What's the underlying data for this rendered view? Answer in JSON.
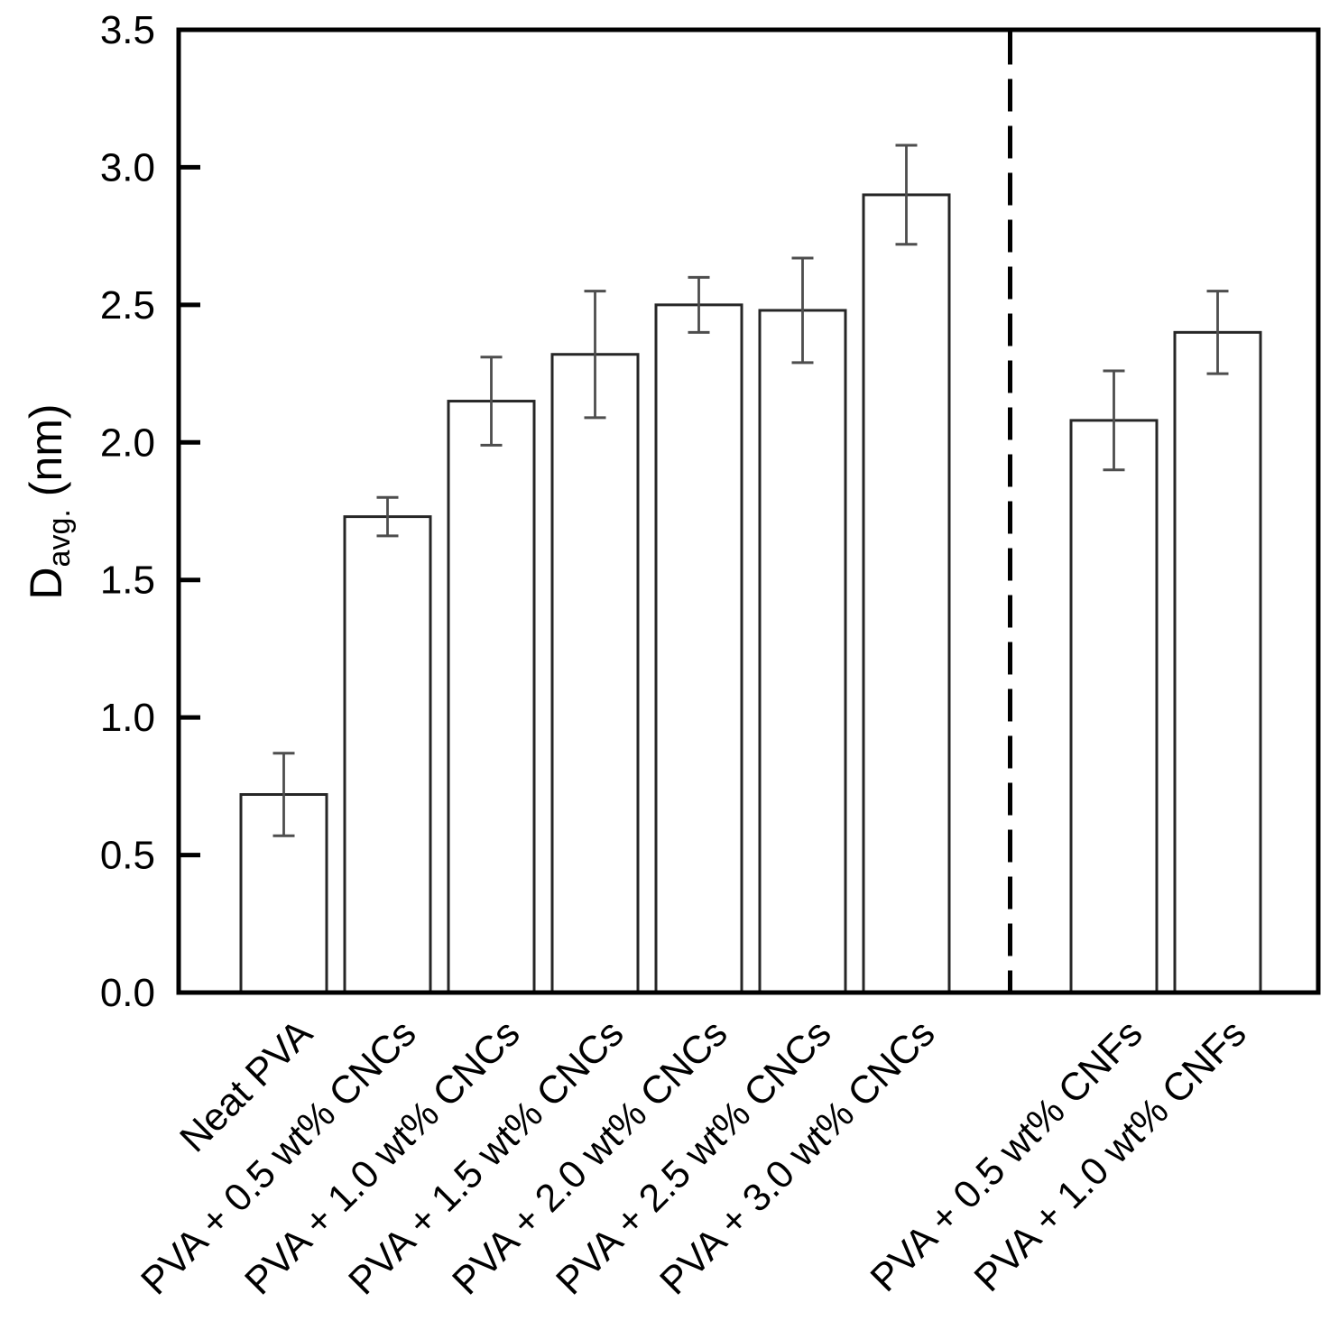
{
  "chart_data": {
    "type": "bar",
    "title": "",
    "ylabel_main": "D",
    "ylabel_subscript": "avg.",
    "ylabel_unit": "(nm)",
    "xlabel": "",
    "ylim": [
      0,
      3.5
    ],
    "ytick_labels": [
      "0.0",
      "0.5",
      "1.0",
      "1.5",
      "2.0",
      "2.5",
      "3.0",
      "3.5"
    ],
    "categories": [
      "Neat PVA",
      "PVA + 0.5 wt% CNCs",
      "PVA + 1.0 wt% CNCs",
      "PVA + 1.5 wt% CNCs",
      "PVA + 2.0 wt% CNCs",
      "PVA + 2.5 wt% CNCs",
      "PVA + 3.0 wt% CNCs",
      "PVA + 0.5 wt% CNFs",
      "PVA + 1.0 wt% CNFs"
    ],
    "values": [
      0.72,
      1.73,
      2.15,
      2.32,
      2.5,
      2.48,
      2.9,
      2.08,
      2.4
    ],
    "errors": [
      0.15,
      0.07,
      0.16,
      0.23,
      0.1,
      0.19,
      0.18,
      0.18,
      0.15
    ],
    "separator": {
      "after_category_index": 6,
      "style": "dashed"
    },
    "grid": false,
    "legend": "none",
    "bar_orientation": "vertical",
    "xtick_label_rotation_deg": 45,
    "colors": {
      "background": "#ffffff",
      "bar_fill": "#ffffff",
      "bar_stroke": "#262626",
      "error_bar": "#4d4d4d",
      "axis": "#000000",
      "text": "#000000"
    }
  }
}
